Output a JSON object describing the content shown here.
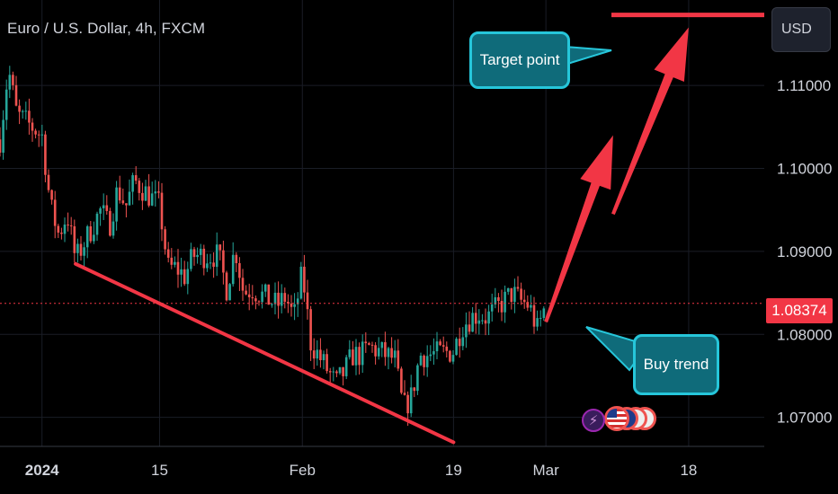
{
  "header": {
    "title": "Euro / U.S. Dollar, 4h, FXCM"
  },
  "currency_button": {
    "label": "USD"
  },
  "annotations": {
    "target_label": "Target point",
    "buy_label": "Buy trend"
  },
  "current_price": {
    "label": "1.08374",
    "value": 1.08374
  },
  "colors": {
    "up": "#26a69a",
    "down": "#ef5350",
    "accent_red": "#f23645",
    "callout_fill": "#0f6b7a",
    "callout_border": "#26c6da"
  },
  "event_icons": [
    "lightning-icon",
    "us-flag-icon",
    "us-flag-icon",
    "us-flag-icon",
    "us-flag-icon"
  ],
  "chart_data": {
    "type": "candlestick",
    "y_axis_labels": [
      "1.11000",
      "1.10000",
      "1.09000",
      "1.08000",
      "1.07000"
    ],
    "y_ticks": [
      1.11,
      1.1,
      1.09,
      1.08,
      1.07
    ],
    "ylim": [
      1.0665,
      1.1203
    ],
    "x_axis_labels": [
      "2024",
      "15",
      "Feb",
      "19",
      "Mar",
      "18"
    ],
    "xlim": [
      "2023-12-27",
      "2024-03-27"
    ],
    "x_ticks": [
      "2024-01-01",
      "2024-01-15",
      "2024-02-01",
      "2024-02-19",
      "2024-03-01",
      "2024-03-18"
    ],
    "close_path": [
      [
        "2023-12-27",
        1.1035
      ],
      [
        "2023-12-28",
        1.112
      ],
      [
        "2023-12-29",
        1.1065
      ],
      [
        "2024-01-01",
        1.104
      ],
      [
        "2024-01-02",
        1.0955
      ],
      [
        "2024-01-03",
        1.092
      ],
      [
        "2024-01-04",
        1.0945
      ],
      [
        "2024-01-05",
        1.089
      ],
      [
        "2024-01-08",
        1.095
      ],
      [
        "2024-01-09",
        1.093
      ],
      [
        "2024-01-10",
        1.0975
      ],
      [
        "2024-01-11",
        1.0955
      ],
      [
        "2024-01-12",
        1.0985
      ],
      [
        "2024-01-15",
        1.0955
      ],
      [
        "2024-01-16",
        1.088
      ],
      [
        "2024-01-17",
        1.088
      ],
      [
        "2024-01-18",
        1.087
      ],
      [
        "2024-01-19",
        1.0895
      ],
      [
        "2024-01-22",
        1.0895
      ],
      [
        "2024-01-23",
        1.0855
      ],
      [
        "2024-01-24",
        1.0905
      ],
      [
        "2024-01-25",
        1.085
      ],
      [
        "2024-01-26",
        1.0855
      ],
      [
        "2024-01-29",
        1.0835
      ],
      [
        "2024-01-30",
        1.0845
      ],
      [
        "2024-01-31",
        1.082
      ],
      [
        "2024-02-01",
        1.0875
      ],
      [
        "2024-02-02",
        1.079
      ],
      [
        "2024-02-05",
        1.074
      ],
      [
        "2024-02-06",
        1.0755
      ],
      [
        "2024-02-07",
        1.0775
      ],
      [
        "2024-02-08",
        1.0775
      ],
      [
        "2024-02-09",
        1.0785
      ],
      [
        "2024-02-12",
        1.077
      ],
      [
        "2024-02-13",
        1.071
      ],
      [
        "2024-02-14",
        1.0725
      ],
      [
        "2024-02-15",
        1.0775
      ],
      [
        "2024-02-16",
        1.0775
      ],
      [
        "2024-02-19",
        1.078
      ],
      [
        "2024-02-20",
        1.081
      ],
      [
        "2024-02-21",
        1.082
      ],
      [
        "2024-02-22",
        1.0825
      ],
      [
        "2024-02-23",
        1.082
      ],
      [
        "2024-02-26",
        1.085
      ],
      [
        "2024-02-27",
        1.084
      ],
      [
        "2024-02-28",
        1.0835
      ],
      [
        "2024-02-29",
        1.0805
      ],
      [
        "2024-03-01",
        1.0837
      ]
    ],
    "support_line": {
      "start": [
        "2024-01-05",
        1.0885
      ],
      "end": [
        "2024-02-19",
        1.067
      ]
    },
    "current_price_line": 1.08374,
    "target_line": 1.1185,
    "arrows": [
      {
        "from": [
          "2024-03-01",
          1.0815
        ],
        "to": [
          "2024-03-09",
          1.104
        ]
      },
      {
        "from": [
          "2024-03-09",
          1.0945
        ],
        "to": [
          "2024-03-18",
          1.117
        ]
      }
    ]
  }
}
